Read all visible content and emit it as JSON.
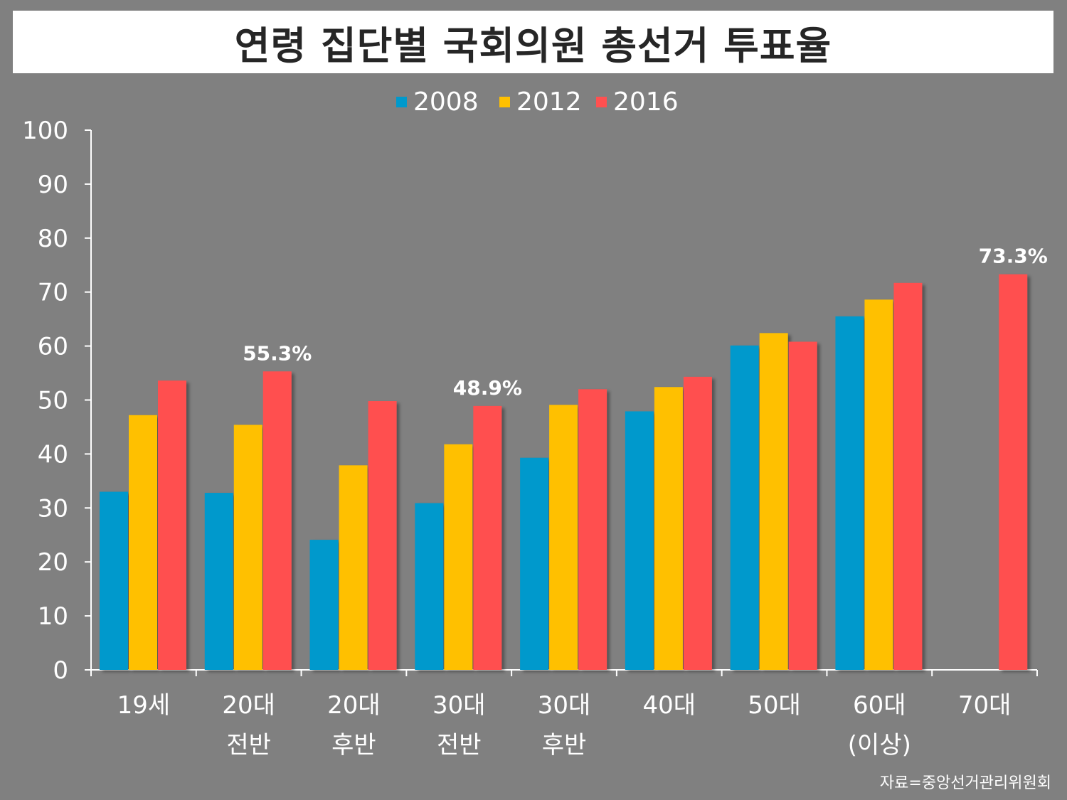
{
  "title": "연령 집단별 국회의원 총선거 투표율",
  "source": "자료=중앙선거관리위원회",
  "chart_data": {
    "type": "bar",
    "title": "연령 집단별 국회의원 총선거 투표율",
    "categories": [
      [
        "19세"
      ],
      [
        "20대",
        "전반"
      ],
      [
        "20대",
        "후반"
      ],
      [
        "30대",
        "전반"
      ],
      [
        "30대",
        "후반"
      ],
      [
        "40대"
      ],
      [
        "50대"
      ],
      [
        "60대",
        "(이상)"
      ],
      [
        "70대"
      ]
    ],
    "series": [
      {
        "name": "2008",
        "color": "#0099CC",
        "values": [
          33.0,
          32.8,
          24.1,
          30.9,
          39.3,
          47.9,
          60.1,
          65.5,
          null
        ]
      },
      {
        "name": "2012",
        "color": "#FFC000",
        "values": [
          47.2,
          45.4,
          37.9,
          41.8,
          49.1,
          52.4,
          62.4,
          68.6,
          null
        ]
      },
      {
        "name": "2016",
        "color": "#FF5050",
        "values": [
          53.6,
          55.3,
          49.8,
          48.9,
          52.0,
          54.3,
          60.8,
          71.7,
          73.3
        ]
      }
    ],
    "annotations": [
      {
        "category_index": 1,
        "series": "2016",
        "text": "55.3%"
      },
      {
        "category_index": 3,
        "series": "2016",
        "text": "48.9%"
      },
      {
        "category_index": 8,
        "series": "2016",
        "text": "73.3%"
      }
    ],
    "yticks": [
      "0",
      "10",
      "20",
      "30",
      "40",
      "50",
      "60",
      "70",
      "80",
      "90",
      "100"
    ],
    "ylim": [
      0,
      100
    ],
    "legend_position": "top-center",
    "grid": false
  }
}
